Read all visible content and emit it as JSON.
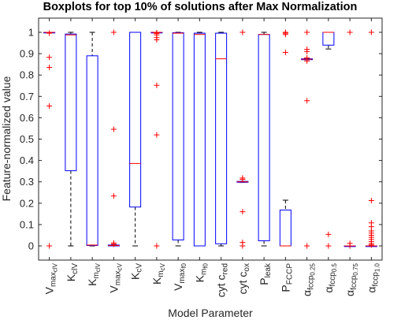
{
  "chart_data": {
    "type": "boxplot",
    "title": "Boxplots for top 10% of solutions after Max Normalization",
    "xlabel": "Model Parameter",
    "ylabel": "Feature-normalized value",
    "ylim": [
      0,
      1
    ],
    "yticks": [
      0,
      0.1,
      0.2,
      0.3,
      0.4,
      0.5,
      0.6,
      0.7,
      0.8,
      0.9,
      1
    ],
    "ytick_labels": [
      "0",
      "0.1",
      "0.2",
      "0.3",
      "0.4",
      "0.5",
      "0.6",
      "0.7",
      "0.8",
      "0.9",
      "1"
    ],
    "grid": false,
    "colors": {
      "box": "#0000ff",
      "median": "#ff0000",
      "whisker": "#000000",
      "outlier": "#ff0000"
    },
    "categories": [
      {
        "label": "Vmax_clV",
        "base": "V",
        "sub": "max",
        "subsub": "clV"
      },
      {
        "label": "K_clV",
        "base": "K",
        "sub": "clV"
      },
      {
        "label": "K_m_clV",
        "base": "K",
        "sub": "m",
        "subsub": "clV"
      },
      {
        "label": "Vmax_cV",
        "base": "V",
        "sub": "max",
        "subsub": "cV"
      },
      {
        "label": "K_cV",
        "base": "K",
        "sub": "cV"
      },
      {
        "label": "K_m_cV",
        "base": "K",
        "sub": "m",
        "subsub": "cV"
      },
      {
        "label": "Vmax_f0",
        "base": "V",
        "sub": "max",
        "subsub": "f0"
      },
      {
        "label": "K_m_f0",
        "base": "K",
        "sub": "m",
        "subsub": "f0"
      },
      {
        "label": "cyt c_red",
        "base": "cyt c",
        "sub": "red"
      },
      {
        "label": "cyt c_ox",
        "base": "cyt c",
        "sub": "ox"
      },
      {
        "label": "P_leak",
        "base": "P",
        "sub": "leak"
      },
      {
        "label": "P_FCCP",
        "base": "P",
        "sub": "FCCP"
      },
      {
        "label": "α_fccp_0.25",
        "base": "α",
        "sub": "fccp",
        "subsub": "0.25"
      },
      {
        "label": "α_fccp_0.5",
        "base": "α",
        "sub": "fccp",
        "subsub": "0.5"
      },
      {
        "label": "α_fccp_0.75",
        "base": "α",
        "sub": "fccp",
        "subsub": "0.75"
      },
      {
        "label": "α_fccp_1.0",
        "base": "α",
        "sub": "fccp",
        "subsub": "1.0"
      }
    ],
    "boxes": [
      {
        "q1": 1.0,
        "median": 1.0,
        "q3": 1.0,
        "whisker_low": 1.0,
        "whisker_high": 1.0,
        "outliers": [
          0.996,
          0.883,
          0.836,
          0.655,
          0.0
        ]
      },
      {
        "q1": 0.352,
        "median": 0.988,
        "q3": 0.992,
        "whisker_low": 0.0,
        "whisker_high": 1.0,
        "outliers": []
      },
      {
        "q1": 0.002,
        "median": 0.004,
        "q3": 0.89,
        "whisker_low": 0.0,
        "whisker_high": 1.0,
        "outliers": []
      },
      {
        "q1": 0.0,
        "median": 0.002,
        "q3": 0.004,
        "whisker_low": 0.0,
        "whisker_high": 0.006,
        "outliers": [
          1.0,
          0.546,
          0.234,
          0.014,
          0.008
        ]
      },
      {
        "q1": 0.182,
        "median": 0.386,
        "q3": 1.0,
        "whisker_low": 0.0,
        "whisker_high": 1.0,
        "outliers": []
      },
      {
        "q1": 1.0,
        "median": 1.0,
        "q3": 1.0,
        "whisker_low": 1.0,
        "whisker_high": 1.0,
        "outliers": [
          0.998,
          0.995,
          0.988,
          0.975,
          0.965,
          0.752,
          0.52,
          0.0
        ]
      },
      {
        "q1": 0.028,
        "median": 0.996,
        "q3": 0.998,
        "whisker_low": 0.0,
        "whisker_high": 1.0,
        "outliers": []
      },
      {
        "q1": 0.0,
        "median": 0.99,
        "q3": 0.996,
        "whisker_low": 0.0,
        "whisker_high": 1.0,
        "outliers": []
      },
      {
        "q1": 0.01,
        "median": 0.876,
        "q3": 0.996,
        "whisker_low": 0.0,
        "whisker_high": 1.0,
        "outliers": []
      },
      {
        "q1": 0.298,
        "median": 0.3,
        "q3": 0.302,
        "whisker_low": 0.298,
        "whisker_high": 0.302,
        "outliers": [
          1.0,
          0.318,
          0.312,
          0.16,
          0.016,
          0.0
        ]
      },
      {
        "q1": 0.024,
        "median": 0.99,
        "q3": 0.99,
        "whisker_low": 0.0,
        "whisker_high": 1.0,
        "outliers": []
      },
      {
        "q1": 0.0,
        "median": 0.0,
        "q3": 0.168,
        "whisker_low": 0.0,
        "whisker_high": 0.214,
        "outliers": [
          1.0,
          0.996,
          0.99,
          0.906
        ]
      },
      {
        "q1": 0.872,
        "median": 0.874,
        "q3": 0.876,
        "whisker_low": 0.872,
        "whisker_high": 0.878,
        "outliers": [
          1.0,
          0.92,
          0.91,
          0.88,
          0.866,
          0.68,
          0.0
        ]
      },
      {
        "q1": 0.94,
        "median": 1.0,
        "q3": 1.0,
        "whisker_low": 0.922,
        "whisker_high": 1.0,
        "outliers": [
          0.054,
          0.0
        ]
      },
      {
        "q1": 0.0,
        "median": 0.0,
        "q3": 0.0,
        "whisker_low": 0.0,
        "whisker_high": 0.0,
        "outliers": [
          1.0,
          0.012,
          0.0
        ]
      },
      {
        "q1": 0.0,
        "median": 0.0,
        "q3": 0.0,
        "whisker_low": 0.0,
        "whisker_high": 0.0,
        "outliers": [
          1.0,
          0.212,
          0.108,
          0.09,
          0.07,
          0.06,
          0.05,
          0.04,
          0.03,
          0.02,
          0.01,
          0.004
        ]
      }
    ]
  }
}
